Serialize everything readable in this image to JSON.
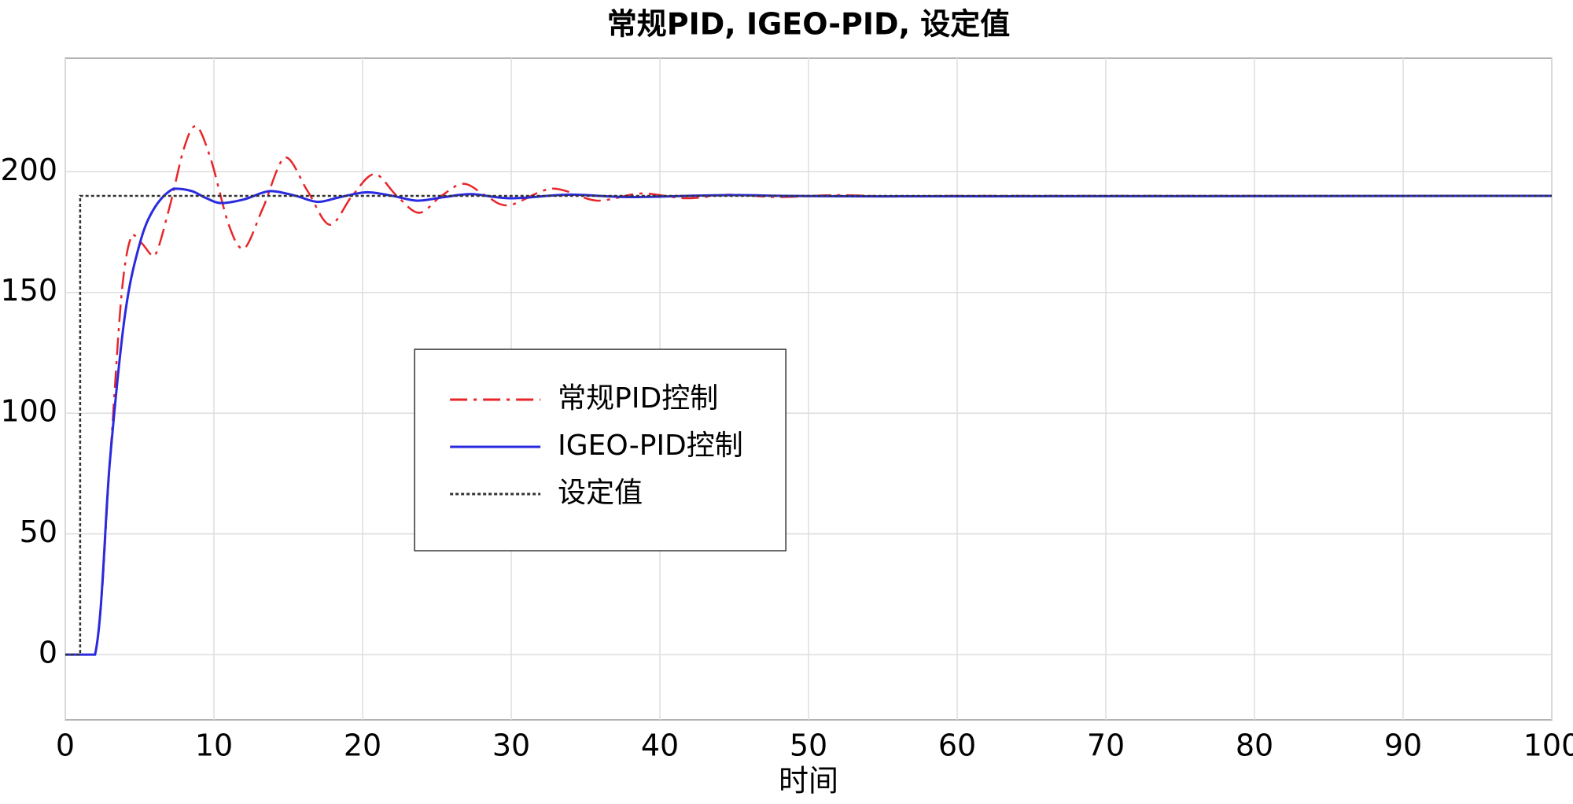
{
  "chart_data": {
    "type": "line",
    "title": "常规PID, IGEO-PID, 设定值",
    "x_label": "时间",
    "xlim": [
      0,
      100
    ],
    "xticks": [
      0,
      10,
      20,
      30,
      40,
      50,
      60,
      70,
      80,
      90,
      100
    ],
    "ylim": [
      -27,
      247
    ],
    "yticks": [
      0,
      50,
      100,
      150,
      200
    ],
    "grid": true,
    "legend": "center-left",
    "series": [
      {
        "name": "常规PID控制",
        "color": "#e8262a",
        "style": "dashdot",
        "x": [
          0,
          2,
          3,
          3.8,
          4.5,
          5.2,
          6,
          7,
          8,
          8.8,
          9.8,
          11,
          12,
          13.3,
          14.8,
          16.3,
          17.8,
          19.3,
          20.8,
          22.3,
          23.8,
          25.3,
          26.8,
          28.3,
          29.8,
          32.8,
          35.8,
          38.8,
          41.8,
          44.8,
          48,
          52,
          56,
          60,
          100
        ],
        "values": [
          0,
          0,
          80,
          150,
          174,
          170,
          165,
          185,
          210,
          219,
          205,
          178,
          168,
          185,
          206,
          192,
          178,
          190,
          199,
          190,
          183,
          190,
          195,
          190,
          186,
          193,
          188,
          191,
          189,
          190.5,
          189.5,
          190.3,
          189.7,
          190,
          190
        ]
      },
      {
        "name": "IGEO-PID控制",
        "color": "#2a2ae0",
        "style": "solid",
        "x": [
          0,
          2,
          3,
          4,
          5,
          6,
          7.3,
          8.5,
          9.5,
          10.5,
          12,
          13.8,
          15.5,
          17,
          18.5,
          20.3,
          22,
          23.7,
          25.5,
          27.3,
          30,
          34,
          38,
          45,
          55,
          100
        ],
        "values": [
          0,
          0,
          80,
          140,
          170,
          185,
          193,
          192,
          189,
          187,
          188.5,
          192,
          190,
          187.5,
          189.5,
          191.5,
          190,
          188,
          189.5,
          190.7,
          189,
          190.5,
          189.5,
          190.3,
          189.8,
          190
        ]
      },
      {
        "name": "设定值",
        "color": "#333333",
        "style": "dotted",
        "x": [
          0,
          1,
          1,
          100
        ],
        "values": [
          0,
          0,
          190,
          190
        ]
      }
    ]
  }
}
